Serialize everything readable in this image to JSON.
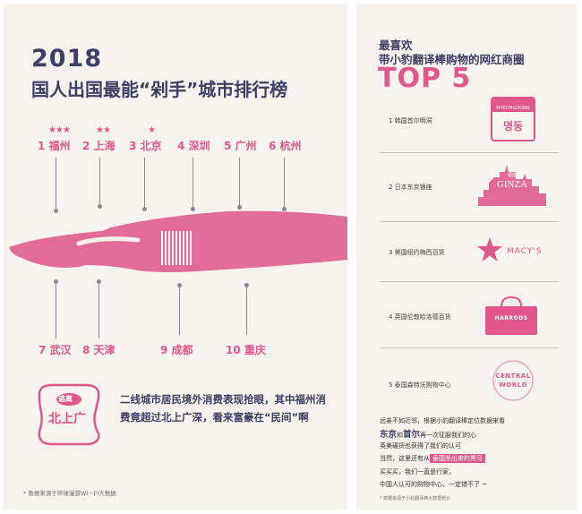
{
  "left": {
    "year": "2018",
    "title": "国人出国最能“剁手”城市排行榜",
    "top_cities": [
      {
        "label": "1 福州",
        "stars": "★★★"
      },
      {
        "label": "2 上海",
        "stars": "★★"
      },
      {
        "label": "3 北京",
        "stars": "★"
      },
      {
        "label": "4 深圳",
        "stars": ""
      },
      {
        "label": "5 广州",
        "stars": ""
      },
      {
        "label": "6 杭州",
        "stars": ""
      }
    ],
    "bottom_cities": [
      "7 武汉",
      "8 天津",
      "9 成都",
      "10 重庆"
    ],
    "badge_top": "逃离",
    "badge_bottom": "北上广",
    "description": "二线城市居民境外消费表现抢眼，其中福州消费竟超过北上广深，看来富豪在“民间”啊",
    "footnote": "* 数据来源于环球漫游WI－FI大数据"
  },
  "right": {
    "title_line1": "最喜欢",
    "title_line2": "带小豹翻译棒购物的网红商圈",
    "top5": "TOP 5",
    "items": [
      {
        "label": "1  韩国首尔明洞",
        "logo_top": "MYEONGDONG",
        "logo_main": "명동"
      },
      {
        "label": "2  日本东京银座",
        "logo_top": "银座",
        "logo_main": "GINZA"
      },
      {
        "label": "3  美国纽约梅西百货",
        "logo_main": "MACY'S"
      },
      {
        "label": "4  英国伦敦哈洛德百货",
        "logo_main": "HARRODS"
      },
      {
        "label": "5  泰国森特沃购物中心",
        "logo_top": "CENTRAL",
        "logo_main": "WORLD"
      }
    ],
    "note_line1": "远亲不如近邻，根据小豹翻译棒定位数据来看",
    "note_big_a": "东京",
    "note_mid": "和",
    "note_big_b": "首尔",
    "note_line2_rest": "再一次征服我们的心",
    "note_line3": "英美硬货也获得了我们的认可",
    "note_line4_pre": "当然，这里还有从",
    "note_line4_hl": "泰国杀出来的黑马",
    "note_line5": "买买买，我们一直是行家，",
    "note_line6": "中国人认可的购物中心，一定错不了 ~",
    "footnote": "* 数据来源于小豹翻译棒大数据统计"
  },
  "colors": {
    "accent": "#e0588b",
    "navy": "#3c3f66",
    "background": "#f6f2ed"
  }
}
